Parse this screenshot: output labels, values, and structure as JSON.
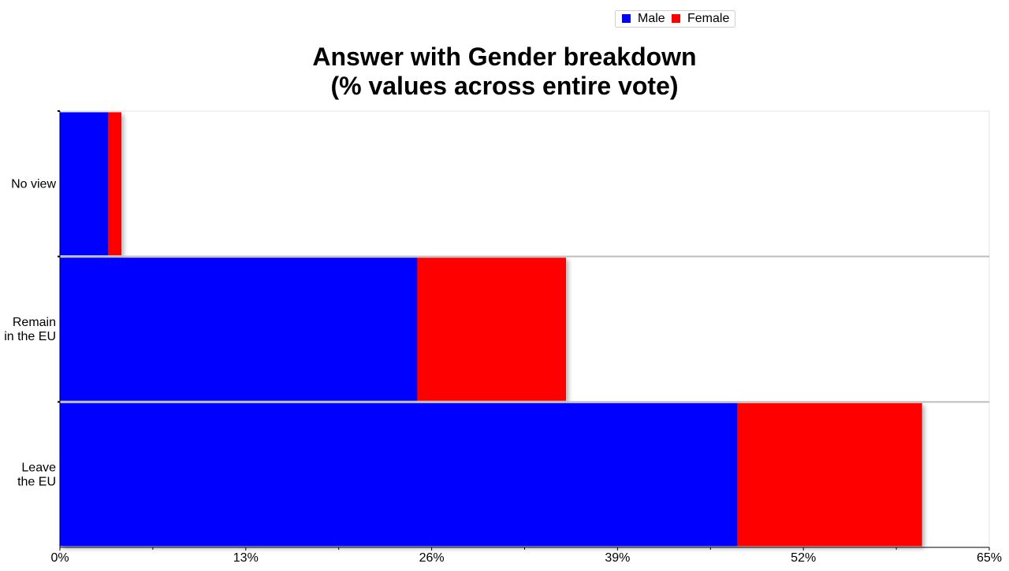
{
  "chart_data": {
    "type": "bar",
    "orientation": "horizontal",
    "stacked": true,
    "title": "Answer with Gender breakdown",
    "subtitle": "(% values across entire vote)",
    "categories": [
      [
        "No view"
      ],
      [
        "Remain",
        "in the EU"
      ],
      [
        "Leave",
        "the EU"
      ]
    ],
    "series": [
      {
        "name": "Male",
        "color": "#0000ff",
        "values": [
          3.4,
          25.0,
          47.4
        ]
      },
      {
        "name": "Female",
        "color": "#ff0000",
        "values": [
          0.9,
          10.4,
          12.9
        ]
      }
    ],
    "xlim": [
      0,
      65
    ],
    "xticks": [
      0,
      13,
      26,
      39,
      52,
      65
    ],
    "xtick_labels": [
      "0%",
      "13%",
      "26%",
      "39%",
      "52%",
      "65%"
    ],
    "xlabel": "",
    "ylabel": "",
    "legend": {
      "position": "top-right",
      "entries": [
        "Male",
        "Female"
      ]
    },
    "grid": false
  }
}
